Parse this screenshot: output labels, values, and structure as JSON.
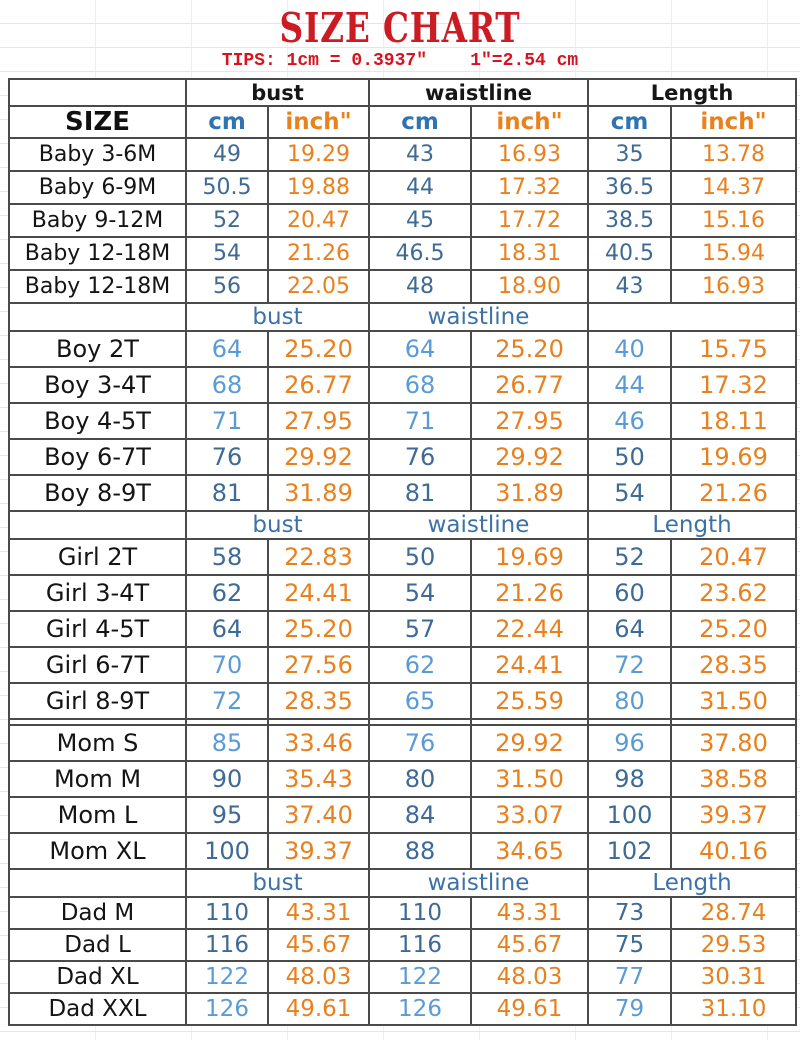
{
  "title": "SIZE CHART",
  "tips": "TIPS: 1cm = 0.3937″    1″=2.54 cm",
  "colors": {
    "title_red": "#cb1b23",
    "tips_red": "#d6131f",
    "header_black": "#161616",
    "cm_header_blue": "#2e74b5",
    "inch_header_orange": "#e8821c",
    "section_header_blue": "#3d72a8",
    "value_blue_dark": "#3e6a96",
    "value_blue_light": "#5b9bd5",
    "value_orange": "#e8801e",
    "grid_border": "#4a4a4a"
  },
  "table": {
    "group_header": {
      "size": "",
      "bust": "bust",
      "waistline": "waistline",
      "length": "Length"
    },
    "column_header": {
      "size": "SIZE",
      "cm": "cm",
      "inch": "inch\""
    },
    "sections": [
      {
        "name": "baby",
        "rows": [
          {
            "label": "Baby 3-6M",
            "shade": "dark",
            "values": [
              "49",
              "19.29",
              "43",
              "16.93",
              "35",
              "13.78"
            ]
          },
          {
            "label": "Baby 6-9M",
            "shade": "dark",
            "values": [
              "50.5",
              "19.88",
              "44",
              "17.32",
              "36.5",
              "14.37"
            ]
          },
          {
            "label": "Baby 9-12M",
            "shade": "dark",
            "values": [
              "52",
              "20.47",
              "45",
              "17.72",
              "38.5",
              "15.16"
            ]
          },
          {
            "label": "Baby 12-18M",
            "shade": "dark",
            "values": [
              "54",
              "21.26",
              "46.5",
              "18.31",
              "40.5",
              "15.94"
            ]
          },
          {
            "label": "Baby 12-18M",
            "shade": "dark",
            "values": [
              "56",
              "22.05",
              "48",
              "18.90",
              "43",
              "16.93"
            ]
          }
        ]
      },
      {
        "name": "boy",
        "header": {
          "bust": "bust",
          "waistline": "waistline",
          "length": ""
        },
        "rows": [
          {
            "label": "Boy 2T",
            "shade": "light",
            "values": [
              "64",
              "25.20",
              "64",
              "25.20",
              "40",
              "15.75"
            ]
          },
          {
            "label": "Boy 3-4T",
            "shade": "light",
            "values": [
              "68",
              "26.77",
              "68",
              "26.77",
              "44",
              "17.32"
            ]
          },
          {
            "label": "Boy 4-5T",
            "shade": "light",
            "values": [
              "71",
              "27.95",
              "71",
              "27.95",
              "46",
              "18.11"
            ]
          },
          {
            "label": "Boy 6-7T",
            "shade": "dark",
            "values": [
              "76",
              "29.92",
              "76",
              "29.92",
              "50",
              "19.69"
            ]
          },
          {
            "label": "Boy 8-9T",
            "shade": "dark",
            "values": [
              "81",
              "31.89",
              "81",
              "31.89",
              "54",
              "21.26"
            ]
          }
        ]
      },
      {
        "name": "girl",
        "header": {
          "bust": "bust",
          "waistline": "waistline",
          "length": "Length"
        },
        "rows": [
          {
            "label": "Girl 2T",
            "shade": "dark",
            "values": [
              "58",
              "22.83",
              "50",
              "19.69",
              "52",
              "20.47"
            ]
          },
          {
            "label": "Girl 3-4T",
            "shade": "dark",
            "values": [
              "62",
              "24.41",
              "54",
              "21.26",
              "60",
              "23.62"
            ]
          },
          {
            "label": "Girl 4-5T",
            "shade": "dark",
            "values": [
              "64",
              "25.20",
              "57",
              "22.44",
              "64",
              "25.20"
            ]
          },
          {
            "label": "Girl 6-7T",
            "shade": "light",
            "values": [
              "70",
              "27.56",
              "62",
              "24.41",
              "72",
              "28.35"
            ]
          },
          {
            "label": "Girl 8-9T",
            "shade": "light",
            "values": [
              "72",
              "28.35",
              "65",
              "25.59",
              "80",
              "31.50"
            ]
          }
        ]
      },
      {
        "name": "mom",
        "spacer_before": true,
        "rows": [
          {
            "label": "Mom S",
            "shade": "light",
            "values": [
              "85",
              "33.46",
              "76",
              "29.92",
              "96",
              "37.80"
            ]
          },
          {
            "label": "Mom M",
            "shade": "dark",
            "values": [
              "90",
              "35.43",
              "80",
              "31.50",
              "98",
              "38.58"
            ]
          },
          {
            "label": "Mom L",
            "shade": "dark",
            "values": [
              "95",
              "37.40",
              "84",
              "33.07",
              "100",
              "39.37"
            ]
          },
          {
            "label": "Mom XL",
            "shade": "dark",
            "values": [
              "100",
              "39.37",
              "88",
              "34.65",
              "102",
              "40.16"
            ]
          }
        ]
      },
      {
        "name": "dad",
        "header": {
          "bust": "bust",
          "waistline": "waistline",
          "length": "Length"
        },
        "rows": [
          {
            "label": "Dad M",
            "shade": "dark",
            "values": [
              "110",
              "43.31",
              "110",
              "43.31",
              "73",
              "28.74"
            ]
          },
          {
            "label": "Dad L",
            "shade": "dark",
            "values": [
              "116",
              "45.67",
              "116",
              "45.67",
              "75",
              "29.53"
            ]
          },
          {
            "label": "Dad XL",
            "shade": "light",
            "values": [
              "122",
              "48.03",
              "122",
              "48.03",
              "77",
              "30.31"
            ]
          },
          {
            "label": "Dad XXL",
            "shade": "light",
            "values": [
              "126",
              "49.61",
              "126",
              "49.61",
              "79",
              "31.10"
            ]
          }
        ]
      }
    ]
  }
}
